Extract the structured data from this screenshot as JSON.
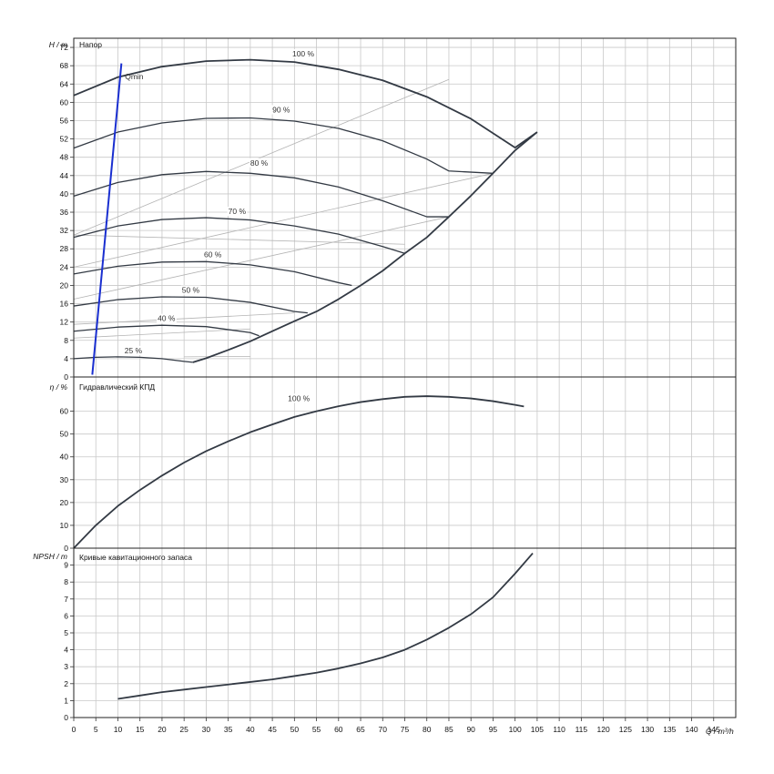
{
  "chart_data": [
    {
      "id": "head",
      "type": "line",
      "title": "Напор",
      "ylabel": "H / m",
      "xlim": [
        0,
        150
      ],
      "ylim": [
        0,
        74
      ],
      "yticks": [
        0,
        4,
        8,
        12,
        16,
        20,
        24,
        28,
        32,
        36,
        40,
        44,
        48,
        52,
        56,
        60,
        64,
        68,
        72
      ],
      "series": [
        {
          "name": "100 %",
          "x": [
            0,
            10,
            20,
            30,
            40,
            50,
            60,
            70,
            80,
            90,
            100,
            105
          ],
          "y": [
            61.5,
            65.5,
            67.8,
            69,
            69.3,
            68.8,
            67.2,
            64.8,
            61.2,
            56.4,
            50.1,
            53.5
          ]
        },
        {
          "name": "90 %",
          "x": [
            0,
            10,
            20,
            30,
            40,
            50,
            60,
            70,
            80,
            85,
            95
          ],
          "y": [
            50,
            53.5,
            55.5,
            56.5,
            56.6,
            55.9,
            54.3,
            51.6,
            47.6,
            45,
            44.5
          ]
        },
        {
          "name": "80 %",
          "x": [
            0,
            10,
            20,
            30,
            40,
            50,
            60,
            70,
            80,
            85
          ],
          "y": [
            39.5,
            42.5,
            44.2,
            44.9,
            44.5,
            43.5,
            41.5,
            38.5,
            35,
            35
          ]
        },
        {
          "name": "70 %",
          "x": [
            0,
            10,
            20,
            30,
            40,
            50,
            60,
            70,
            75
          ],
          "y": [
            30.5,
            33,
            34.4,
            34.8,
            34.3,
            33,
            31.2,
            28.5,
            27
          ]
        },
        {
          "name": "60 %",
          "x": [
            0,
            10,
            20,
            30,
            40,
            50,
            60,
            63
          ],
          "y": [
            22.5,
            24.2,
            25.1,
            25.2,
            24.5,
            23,
            20.6,
            20
          ]
        },
        {
          "name": "50 %",
          "x": [
            0,
            10,
            20,
            30,
            40,
            50,
            53
          ],
          "y": [
            15.5,
            16.9,
            17.5,
            17.4,
            16.3,
            14.3,
            14
          ]
        },
        {
          "name": "40 %",
          "x": [
            0,
            10,
            20,
            30,
            40,
            42
          ],
          "y": [
            10,
            10.9,
            11.3,
            11,
            9.7,
            9
          ]
        },
        {
          "name": "25 %",
          "x": [
            0,
            5,
            10,
            15,
            20,
            25,
            27
          ],
          "y": [
            4,
            4.3,
            4.4,
            4.3,
            4,
            3.4,
            3.2
          ]
        },
        {
          "name": "",
          "role": "envelope",
          "x": [
            27,
            30,
            35,
            40,
            45,
            50,
            55,
            60,
            65,
            70,
            75,
            80,
            85,
            90,
            95,
            100,
            105
          ],
          "y": [
            3.2,
            4.1,
            5.9,
            7.8,
            10,
            12.2,
            14.3,
            17,
            20,
            23.2,
            27,
            30.5,
            35,
            39.6,
            44.5,
            49.5,
            53.5
          ]
        },
        {
          "name": "",
          "role": "qmin",
          "x": [
            4.2,
            10.8
          ],
          "y": [
            0.5,
            68.5
          ]
        },
        {
          "name": "",
          "role": "efficiency-guide",
          "x": [
            0,
            85
          ],
          "y": [
            31,
            65
          ]
        },
        {
          "name": "",
          "role": "efficiency-guide",
          "x": [
            0,
            95
          ],
          "y": [
            24,
            44.5
          ]
        },
        {
          "name": "",
          "role": "efficiency-guide",
          "x": [
            0,
            85
          ],
          "y": [
            17,
            35
          ]
        },
        {
          "name": "",
          "role": "efficiency-guide",
          "x": [
            0,
            75
          ],
          "y": [
            31,
            29
          ]
        },
        {
          "name": "",
          "role": "efficiency-guide",
          "x": [
            0,
            40
          ],
          "y": [
            8.5,
            10.5
          ]
        },
        {
          "name": "",
          "role": "efficiency-guide",
          "x": [
            0,
            50
          ],
          "y": [
            11.5,
            14
          ]
        },
        {
          "name": "",
          "role": "efficiency-guide",
          "x": [
            25,
            40
          ],
          "y": [
            4.4,
            4.5
          ]
        }
      ],
      "annotations": [
        {
          "text": "100 %",
          "x": 52,
          "y": 70
        },
        {
          "text": "90 %",
          "x": 47,
          "y": 57.8
        },
        {
          "text": "80 %",
          "x": 42,
          "y": 46.2
        },
        {
          "text": "70 %",
          "x": 37,
          "y": 35.6
        },
        {
          "text": "60 %",
          "x": 31.5,
          "y": 26.2
        },
        {
          "text": "50 %",
          "x": 26.5,
          "y": 18.4
        },
        {
          "text": "40 %",
          "x": 21,
          "y": 12.2
        },
        {
          "text": "25 %",
          "x": 13.5,
          "y": 5.2
        },
        {
          "text": "Qmin",
          "x": 11.6,
          "y": 65
        }
      ]
    },
    {
      "id": "efficiency",
      "type": "line",
      "title": "Гидравлический КПД",
      "ylabel": "η / %",
      "xlim": [
        0,
        150
      ],
      "ylim": [
        0,
        75
      ],
      "yticks": [
        0,
        10,
        20,
        30,
        40,
        50,
        60
      ],
      "series": [
        {
          "name": "100 %",
          "x": [
            0,
            5,
            10,
            15,
            20,
            25,
            30,
            35,
            40,
            45,
            50,
            55,
            60,
            65,
            70,
            75,
            80,
            85,
            90,
            95,
            100,
            102
          ],
          "y": [
            0,
            10,
            18.5,
            25.5,
            31.8,
            37.5,
            42.5,
            46.8,
            50.8,
            54.2,
            57.5,
            60,
            62.2,
            64,
            65.3,
            66.3,
            66.6,
            66.3,
            65.6,
            64.4,
            62.8,
            62.1
          ]
        }
      ],
      "annotations": [
        {
          "text": "100 %",
          "x": 51,
          "y": 64.5
        }
      ]
    },
    {
      "id": "npsh",
      "type": "line",
      "title": "Кривые кавитационного запаса",
      "ylabel": "NPSH / m",
      "xlabel": "Q / m³/h",
      "xlim": [
        0,
        150
      ],
      "ylim": [
        0,
        10
      ],
      "yticks": [
        0,
        1,
        2,
        3,
        4,
        5,
        6,
        7,
        8,
        9
      ],
      "xticks": [
        0,
        5,
        10,
        15,
        20,
        25,
        30,
        35,
        40,
        45,
        50,
        55,
        60,
        65,
        70,
        75,
        80,
        85,
        90,
        95,
        100,
        105,
        110,
        115,
        120,
        125,
        130,
        135,
        140,
        145
      ],
      "series": [
        {
          "name": "",
          "x": [
            10,
            15,
            20,
            25,
            30,
            35,
            40,
            45,
            50,
            55,
            60,
            65,
            70,
            75,
            80,
            85,
            90,
            95,
            100,
            104
          ],
          "y": [
            1.1,
            1.3,
            1.5,
            1.65,
            1.8,
            1.95,
            2.1,
            2.25,
            2.45,
            2.65,
            2.9,
            3.2,
            3.55,
            4,
            4.6,
            5.3,
            6.1,
            7.1,
            8.5,
            9.7
          ]
        }
      ]
    }
  ]
}
